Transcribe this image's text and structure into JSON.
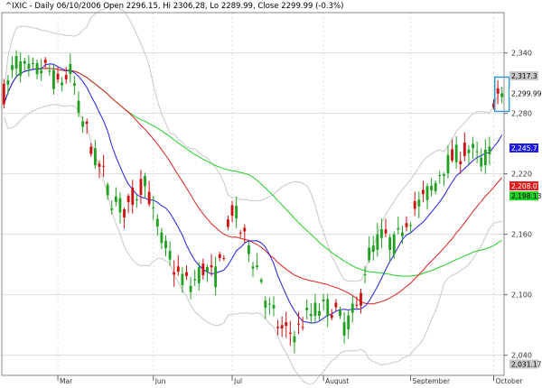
{
  "header": {
    "symbol": "^IXIC",
    "period": "Daily",
    "date": "06/10/2006",
    "open_label": "Open",
    "open": "2296.15",
    "high_label": "Hi",
    "high": "2306.28",
    "low_label": "Lo",
    "low": "2289.99",
    "close_label": "Close",
    "close": "2299.99",
    "change": "(-0.3%)"
  },
  "chart_data": {
    "type": "candlestick",
    "ylim": [
      2020,
      2380
    ],
    "y_ticks": [
      {
        "value": 2040,
        "label": "2,040"
      },
      {
        "value": 2100,
        "label": "2,100"
      },
      {
        "value": 2160,
        "label": "2,160"
      },
      {
        "value": 2220,
        "label": "2,220"
      },
      {
        "value": 2280,
        "label": "2,280"
      },
      {
        "value": 2340,
        "label": "2,340"
      }
    ],
    "x_ticks": [
      {
        "index": 13,
        "label": "Mar"
      },
      {
        "index": 36,
        "label": "Jun"
      },
      {
        "index": 55,
        "label": "Jul"
      },
      {
        "index": 77,
        "label": "August"
      },
      {
        "index": 98,
        "label": "September"
      },
      {
        "index": 118,
        "label": "October"
      }
    ],
    "price_tags": [
      {
        "value": 2317.3,
        "label": "2,317.3",
        "bg": "#c8c8c8",
        "fg": "#000000"
      },
      {
        "value": 2299.99,
        "label": "2,299.99",
        "bg": "#ffffff",
        "fg": "#000000"
      },
      {
        "value": 2245.7,
        "label": "2,245.7",
        "bg": "#1f1fe0",
        "fg": "#ffffff"
      },
      {
        "value": 2208.07,
        "label": "2,208.07",
        "bg": "#e02020",
        "fg": "#ffffff"
      },
      {
        "value": 2198.13,
        "label": "2,198.13",
        "bg": "#22d022",
        "fg": "#000000"
      },
      {
        "value": 2031.17,
        "label": "2,031.17",
        "bg": "#c8c8c8",
        "fg": "#000000"
      }
    ],
    "colors": {
      "up": "#22a022",
      "down": "#cc1111",
      "ma_short": "#1f1fe0",
      "ma_mid": "#e02020",
      "ma_long": "#22d022",
      "band": "#c8c8c8",
      "grid": "#dddddd",
      "highlight": "#3399dd"
    }
  }
}
